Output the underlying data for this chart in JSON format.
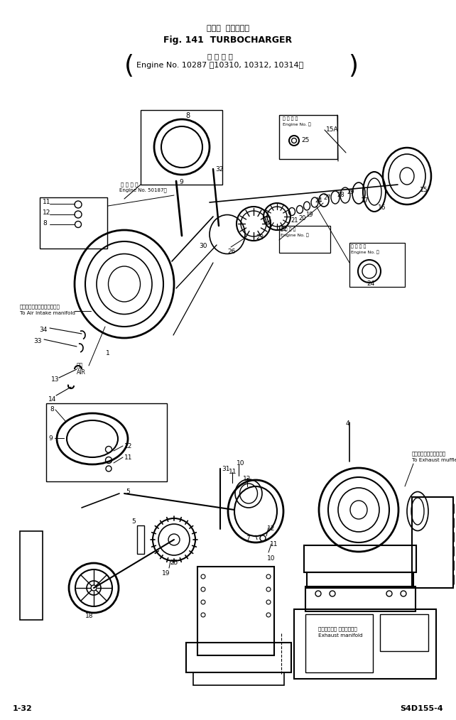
{
  "title_line1": "ターボ  チャージャ",
  "title_line2": "Fig. 141  TURBOCHARGER",
  "title_line3_jp": "適 用 号 機",
  "title_line3_en": "Engine No. 10287 〜10310, 10312, 10314〜",
  "footer_left": "1-32",
  "footer_right": "S4D155-4",
  "bg_color": "#ffffff",
  "line_color": "#000000",
  "fig_width": 6.42,
  "fig_height": 10.14,
  "dpi": 100
}
